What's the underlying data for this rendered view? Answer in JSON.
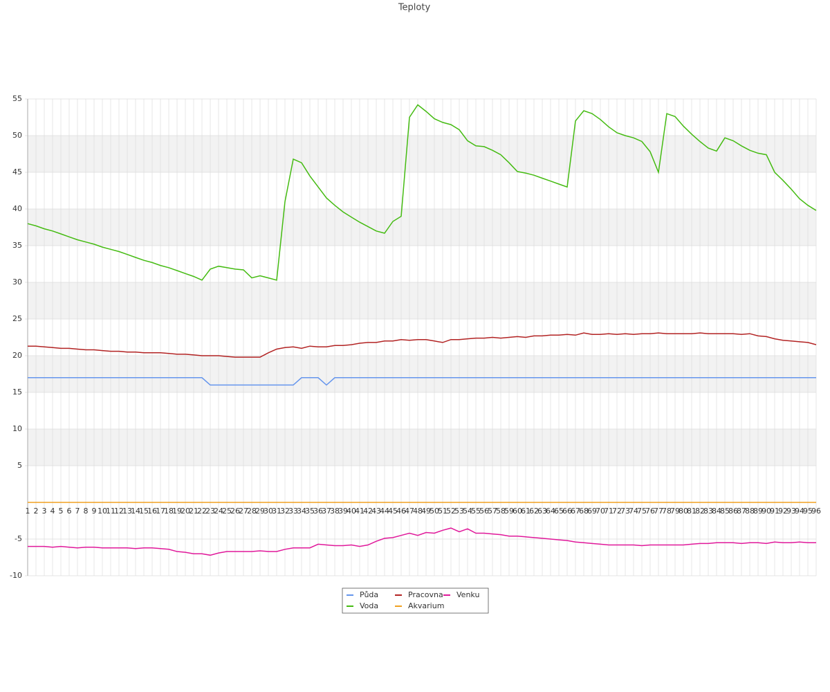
{
  "chart_data": {
    "type": "line",
    "title": "Teploty",
    "categories": [
      1,
      2,
      3,
      4,
      5,
      6,
      7,
      8,
      9,
      10,
      11,
      12,
      13,
      14,
      15,
      16,
      17,
      18,
      19,
      20,
      21,
      22,
      23,
      24,
      25,
      26,
      27,
      28,
      29,
      30,
      31,
      32,
      33,
      34,
      35,
      36,
      37,
      38,
      39,
      40,
      41,
      42,
      43,
      44,
      45,
      46,
      47,
      48,
      49,
      50,
      51,
      52,
      53,
      54,
      55,
      56,
      57,
      58,
      59,
      60,
      61,
      62,
      63,
      64,
      65,
      66,
      67,
      68,
      69,
      70,
      71,
      72,
      73,
      74,
      75,
      76,
      77,
      78,
      79,
      80,
      81,
      82,
      83,
      84,
      85,
      86,
      87,
      88,
      89,
      90,
      91,
      92,
      93,
      94,
      95,
      96
    ],
    "series": [
      {
        "name": "Půda",
        "color": "#6495ed",
        "values": [
          17,
          17,
          17,
          17,
          17,
          17,
          17,
          17,
          17,
          17,
          17,
          17,
          17,
          17,
          17,
          17,
          17,
          17,
          17,
          17,
          17,
          17,
          16,
          16,
          16,
          16,
          16,
          16,
          16,
          16,
          16,
          16,
          16,
          17,
          17,
          17,
          16,
          17,
          17,
          17,
          17,
          17,
          17,
          17,
          17,
          17,
          17,
          17,
          17,
          17,
          17,
          17,
          17,
          17,
          17,
          17,
          17,
          17,
          17,
          17,
          17,
          17,
          17,
          17,
          17,
          17,
          17,
          17,
          17,
          17,
          17,
          17,
          17,
          17,
          17,
          17,
          17,
          17,
          17,
          17,
          17,
          17,
          17,
          17,
          17,
          17,
          17,
          17,
          17,
          17,
          17,
          17,
          17,
          17,
          17,
          17
        ]
      },
      {
        "name": "Voda",
        "color": "#44bb11",
        "values": [
          38.0,
          37.7,
          37.3,
          37.0,
          36.6,
          36.2,
          35.8,
          35.5,
          35.2,
          34.8,
          34.5,
          34.2,
          33.8,
          33.4,
          33.0,
          32.7,
          32.3,
          32.0,
          31.6,
          31.2,
          30.8,
          30.3,
          31.8,
          32.2,
          32.0,
          31.8,
          31.7,
          30.6,
          30.9,
          30.6,
          30.3,
          41.0,
          46.8,
          46.3,
          44.5,
          43.0,
          41.5,
          40.5,
          39.6,
          38.9,
          38.2,
          37.6,
          37.0,
          36.7,
          38.3,
          39.0,
          52.5,
          54.2,
          53.3,
          52.3,
          51.8,
          51.5,
          50.8,
          49.3,
          48.6,
          48.5,
          48.0,
          47.4,
          46.3,
          45.1,
          44.9,
          44.6,
          44.2,
          43.8,
          43.4,
          43.0,
          52.0,
          53.4,
          53.0,
          52.2,
          51.2,
          50.4,
          50.0,
          49.7,
          49.2,
          47.8,
          45.0,
          53.0,
          52.6,
          51.3,
          50.2,
          49.2,
          48.3,
          47.9,
          49.7,
          49.3,
          48.6,
          48.0,
          47.6,
          47.4,
          45.0,
          43.9,
          42.7,
          41.4,
          40.5,
          39.8
        ]
      },
      {
        "name": "Pracovna",
        "color": "#b22222",
        "values": [
          21.3,
          21.3,
          21.2,
          21.1,
          21.0,
          21.0,
          20.9,
          20.8,
          20.8,
          20.7,
          20.6,
          20.6,
          20.5,
          20.5,
          20.4,
          20.4,
          20.4,
          20.3,
          20.2,
          20.2,
          20.1,
          20.0,
          20.0,
          20.0,
          19.9,
          19.8,
          19.8,
          19.8,
          19.8,
          20.4,
          20.9,
          21.1,
          21.2,
          21.0,
          21.3,
          21.2,
          21.2,
          21.4,
          21.4,
          21.5,
          21.7,
          21.8,
          21.8,
          22.0,
          22.0,
          22.2,
          22.1,
          22.2,
          22.2,
          22.0,
          21.8,
          22.2,
          22.2,
          22.3,
          22.4,
          22.4,
          22.5,
          22.4,
          22.5,
          22.6,
          22.5,
          22.7,
          22.7,
          22.8,
          22.8,
          22.9,
          22.8,
          23.1,
          22.9,
          22.9,
          23.0,
          22.9,
          23.0,
          22.9,
          23.0,
          23.0,
          23.1,
          23.0,
          23.0,
          23.0,
          23.0,
          23.1,
          23.0,
          23.0,
          23.0,
          23.0,
          22.9,
          23.0,
          22.7,
          22.6,
          22.3,
          22.1,
          22.0,
          21.9,
          21.8,
          21.5
        ]
      },
      {
        "name": "Akvarium",
        "color": "#f0a020",
        "values": [
          0,
          0,
          0,
          0,
          0,
          0,
          0,
          0,
          0,
          0,
          0,
          0,
          0,
          0,
          0,
          0,
          0,
          0,
          0,
          0,
          0,
          0,
          0,
          0,
          0,
          0,
          0,
          0,
          0,
          0,
          0,
          0,
          0,
          0,
          0,
          0,
          0,
          0,
          0,
          0,
          0,
          0,
          0,
          0,
          0,
          0,
          0,
          0,
          0,
          0,
          0,
          0,
          0,
          0,
          0,
          0,
          0,
          0,
          0,
          0,
          0,
          0,
          0,
          0,
          0,
          0,
          0,
          0,
          0,
          0,
          0,
          0,
          0,
          0,
          0,
          0,
          0,
          0,
          0,
          0,
          0,
          0,
          0,
          0,
          0,
          0,
          0,
          0,
          0,
          0,
          0,
          0,
          0,
          0,
          0,
          0
        ]
      },
      {
        "name": "Venku",
        "color": "#e0189a",
        "values": [
          -6.0,
          -6.0,
          -6.0,
          -6.1,
          -6.0,
          -6.1,
          -6.2,
          -6.1,
          -6.1,
          -6.2,
          -6.2,
          -6.2,
          -6.2,
          -6.3,
          -6.2,
          -6.2,
          -6.3,
          -6.4,
          -6.7,
          -6.8,
          -7.0,
          -7.0,
          -7.2,
          -6.9,
          -6.7,
          -6.7,
          -6.7,
          -6.7,
          -6.6,
          -6.7,
          -6.7,
          -6.4,
          -6.2,
          -6.2,
          -6.2,
          -5.7,
          -5.8,
          -5.9,
          -5.9,
          -5.8,
          -6.0,
          -5.8,
          -5.3,
          -4.9,
          -4.8,
          -4.5,
          -4.2,
          -4.5,
          -4.1,
          -4.2,
          -3.8,
          -3.5,
          -4.0,
          -3.6,
          -4.2,
          -4.2,
          -4.3,
          -4.4,
          -4.6,
          -4.6,
          -4.7,
          -4.8,
          -4.9,
          -5.0,
          -5.1,
          -5.2,
          -5.4,
          -5.5,
          -5.6,
          -5.7,
          -5.8,
          -5.8,
          -5.8,
          -5.8,
          -5.9,
          -5.8,
          -5.8,
          -5.8,
          -5.8,
          -5.8,
          -5.7,
          -5.6,
          -5.6,
          -5.5,
          -5.5,
          -5.5,
          -5.6,
          -5.5,
          -5.5,
          -5.6,
          -5.4,
          -5.5,
          -5.5,
          -5.4,
          -5.5,
          -5.5
        ]
      }
    ],
    "ylim": [
      -10,
      55
    ],
    "yticks": [
      -10,
      -5,
      5,
      10,
      15,
      20,
      25,
      30,
      35,
      40,
      45,
      50,
      55
    ],
    "grid": true,
    "legend": "bottom"
  }
}
